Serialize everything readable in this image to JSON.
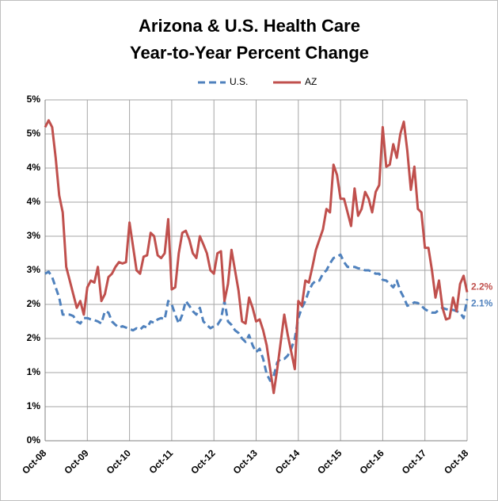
{
  "chart_data": {
    "type": "line",
    "title": [
      "Arizona & U.S. Health Care",
      "Year-to-Year Percent Change"
    ],
    "categories": [
      "Oct-08",
      null,
      null,
      null,
      null,
      null,
      null,
      null,
      null,
      null,
      null,
      null,
      "Oct-09",
      null,
      null,
      null,
      null,
      null,
      null,
      null,
      null,
      null,
      null,
      null,
      "Oct-10",
      null,
      null,
      null,
      null,
      null,
      null,
      null,
      null,
      null,
      null,
      null,
      "Oct-11",
      null,
      null,
      null,
      null,
      null,
      null,
      null,
      null,
      null,
      null,
      null,
      "Oct-12",
      null,
      null,
      null,
      null,
      null,
      null,
      null,
      null,
      null,
      null,
      null,
      "Oct-13",
      null,
      null,
      null,
      null,
      null,
      null,
      null,
      null,
      null,
      null,
      null,
      "Oct-14",
      null,
      null,
      null,
      null,
      null,
      null,
      null,
      null,
      null,
      null,
      null,
      "Oct-15",
      null,
      null,
      null,
      null,
      null,
      null,
      null,
      null,
      null,
      null,
      null,
      "Oct-16",
      null,
      null,
      null,
      null,
      null,
      null,
      null,
      null,
      null,
      null,
      null,
      "Oct-17",
      null,
      null,
      null,
      null,
      null,
      null,
      null,
      null,
      null,
      null,
      null,
      "Oct-18"
    ],
    "series": [
      {
        "name": "U.S.",
        "color": "#4f81bd",
        "dashed": true,
        "last_label": "2.1%",
        "values": [
          2.45,
          2.48,
          2.4,
          2.25,
          2.1,
          1.85,
          1.85,
          1.85,
          1.83,
          1.75,
          1.72,
          1.8,
          1.8,
          1.78,
          1.77,
          1.75,
          1.72,
          1.9,
          1.88,
          1.75,
          1.7,
          1.66,
          1.68,
          1.66,
          1.64,
          1.62,
          1.65,
          1.63,
          1.68,
          1.66,
          1.75,
          1.73,
          1.78,
          1.8,
          1.78,
          2.05,
          2.0,
          1.85,
          1.72,
          1.85,
          2.05,
          1.98,
          1.9,
          1.85,
          1.95,
          1.75,
          1.7,
          1.65,
          1.68,
          1.7,
          1.78,
          2.05,
          1.75,
          1.7,
          1.62,
          1.58,
          1.5,
          1.45,
          1.55,
          1.4,
          1.3,
          1.35,
          1.2,
          0.98,
          0.88,
          0.95,
          1.15,
          1.2,
          1.2,
          1.25,
          1.35,
          1.5,
          1.8,
          1.95,
          2.05,
          2.2,
          2.3,
          2.35,
          2.35,
          2.45,
          2.5,
          2.6,
          2.68,
          2.7,
          2.73,
          2.62,
          2.55,
          2.55,
          2.55,
          2.53,
          2.52,
          2.5,
          2.5,
          2.48,
          2.45,
          2.45,
          2.36,
          2.35,
          2.3,
          2.25,
          2.35,
          2.2,
          2.1,
          1.98,
          2.0,
          2.03,
          2.02,
          1.98,
          1.93,
          1.9,
          1.88,
          1.88,
          1.92,
          1.95,
          1.93,
          1.92,
          1.92,
          1.9,
          1.88,
          1.8,
          2.08
        ]
      },
      {
        "name": "AZ",
        "color": "#c0504d",
        "dashed": false,
        "last_label": "2.2%",
        "values": [
          4.6,
          4.7,
          4.6,
          4.15,
          3.6,
          3.35,
          2.55,
          2.35,
          2.15,
          1.95,
          2.05,
          1.85,
          2.25,
          2.35,
          2.32,
          2.55,
          2.05,
          2.15,
          2.4,
          2.45,
          2.55,
          2.62,
          2.6,
          2.62,
          3.2,
          2.85,
          2.5,
          2.45,
          2.7,
          2.72,
          3.05,
          3.0,
          2.72,
          2.68,
          2.75,
          3.25,
          2.22,
          2.25,
          2.75,
          3.05,
          3.08,
          2.95,
          2.75,
          2.68,
          3.0,
          2.88,
          2.75,
          2.5,
          2.45,
          2.75,
          2.78,
          2.05,
          2.3,
          2.8,
          2.5,
          2.2,
          1.75,
          1.72,
          2.1,
          1.95,
          1.75,
          1.78,
          1.62,
          1.4,
          1.05,
          0.7,
          1.05,
          1.45,
          1.85,
          1.55,
          1.3,
          1.05,
          2.05,
          1.98,
          2.35,
          2.32,
          2.55,
          2.8,
          2.95,
          3.1,
          3.4,
          3.35,
          4.05,
          3.9,
          3.55,
          3.55,
          3.35,
          3.15,
          3.7,
          3.3,
          3.4,
          3.65,
          3.55,
          3.35,
          3.65,
          3.75,
          4.6,
          4.02,
          4.05,
          4.35,
          4.15,
          4.5,
          4.68,
          4.25,
          3.68,
          4.02,
          3.4,
          3.35,
          2.83,
          2.83,
          2.5,
          2.1,
          2.35,
          1.95,
          1.78,
          1.8,
          2.1,
          1.9,
          2.3,
          2.42,
          2.18
        ]
      }
    ],
    "ylim": [
      0,
      5
    ],
    "yticks": [
      {
        "value": 0,
        "label": "0%"
      },
      {
        "value": 0.5,
        "label": "1%"
      },
      {
        "value": 1,
        "label": "1%"
      },
      {
        "value": 1.5,
        "label": "2%"
      },
      {
        "value": 2,
        "label": "2%"
      },
      {
        "value": 2.5,
        "label": "3%"
      },
      {
        "value": 3,
        "label": "3%"
      },
      {
        "value": 3.5,
        "label": "4%"
      },
      {
        "value": 4,
        "label": "4%"
      },
      {
        "value": 4.5,
        "label": "5%"
      },
      {
        "value": 5,
        "label": "5%"
      }
    ],
    "grid": true,
    "legend": "top"
  }
}
